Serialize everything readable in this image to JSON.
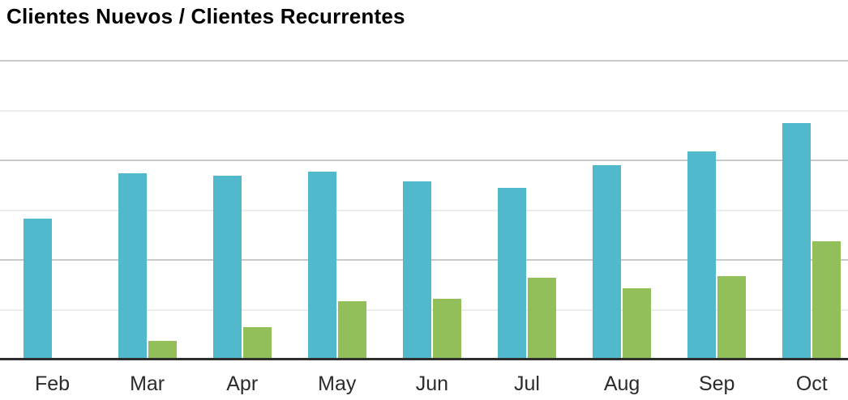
{
  "title": "Clientes Nuevos / Clientes Recurrentes",
  "chart_data": {
    "type": "bar",
    "title": "Clientes Nuevos / Clientes Recurrentes",
    "categories": [
      "Feb",
      "Mar",
      "Apr",
      "May",
      "Jun",
      "Jul",
      "Aug",
      "Sep",
      "Oct"
    ],
    "series": [
      {
        "name": "Clientes Nuevos",
        "color": "#52b8cb",
        "values": [
          28.3,
          37.4,
          36.9,
          37.7,
          35.8,
          34.5,
          39.0,
          41.8,
          47.5
        ]
      },
      {
        "name": "Clientes Recurrentes",
        "color": "#93bf5a",
        "values": [
          0,
          3.7,
          6.5,
          11.7,
          12.2,
          16.4,
          14.3,
          16.7,
          23.7
        ]
      }
    ],
    "xlabel": "",
    "ylabel": "",
    "ylim": [
      0,
      60
    ],
    "grid_step": 10,
    "grid": "horizontal",
    "y_axis_tick_labels": "none",
    "legend_position": "none"
  },
  "colors": {
    "background": "#ffffff",
    "bar_blue": "#52b8cb",
    "bar_green": "#93bf5a",
    "grid_major": "#c9c9c9",
    "grid_minor": "#ececec",
    "axis_line": "#2e2e2e",
    "title_text": "#000000",
    "label_text": "#2b2b2b"
  }
}
